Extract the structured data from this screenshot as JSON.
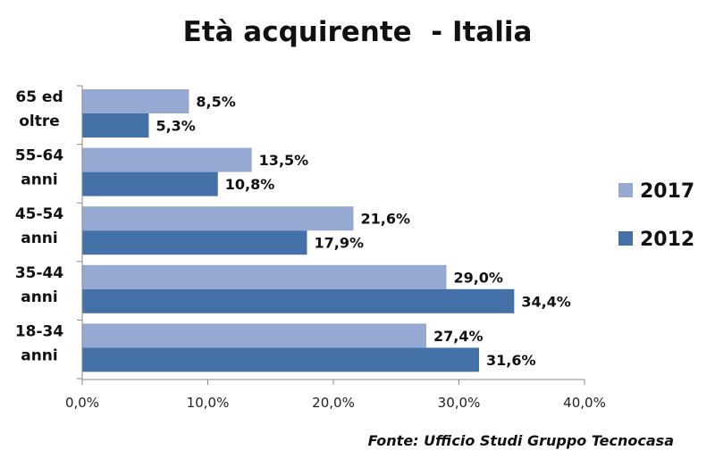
{
  "chart_data": {
    "type": "bar",
    "orientation": "horizontal",
    "title": "Età acquirente  - Italia",
    "categories": [
      [
        "65 ed",
        "oltre"
      ],
      [
        "55-64",
        "anni"
      ],
      [
        "45-54",
        "anni"
      ],
      [
        "35-44",
        "anni"
      ],
      [
        "18-34",
        "anni"
      ]
    ],
    "series": [
      {
        "name": "2017",
        "color": "#95A9D3",
        "values": [
          8.5,
          13.5,
          21.6,
          29.0,
          27.4
        ],
        "labels": [
          "8,5%",
          "13,5%",
          "21,6%",
          "29,0%",
          "27,4%"
        ]
      },
      {
        "name": "2012",
        "color": "#4472A8",
        "values": [
          5.3,
          10.8,
          17.9,
          34.4,
          31.6
        ],
        "labels": [
          "5,3%",
          "10,8%",
          "17,9%",
          "34,4%",
          "31,6%"
        ]
      }
    ],
    "xlim": [
      0,
      40
    ],
    "xticks": [
      0,
      10,
      20,
      30,
      40
    ],
    "xtick_labels": [
      "0,0%",
      "10,0%",
      "20,0%",
      "30,0%",
      "40,0%"
    ],
    "xlabel": "",
    "ylabel": "",
    "grid": false,
    "legend_position": "right",
    "source": "Fonte: Ufficio Studi Gruppo Tecnocasa"
  }
}
